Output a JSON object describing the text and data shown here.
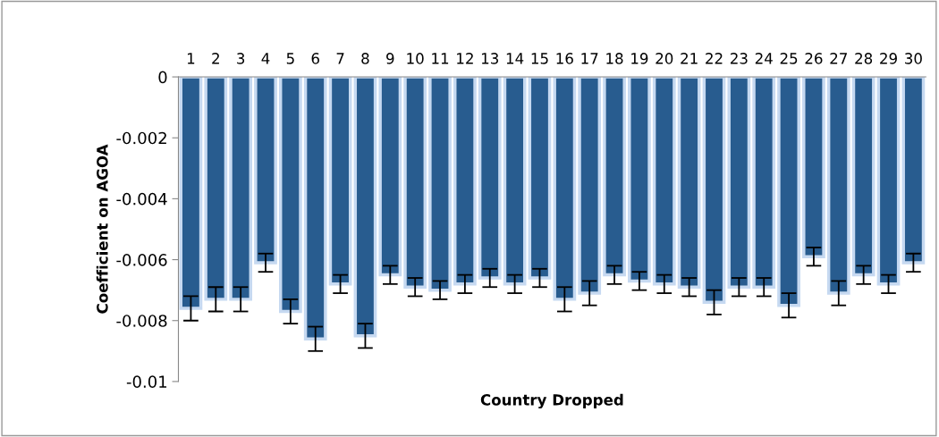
{
  "chart_data": {
    "type": "bar",
    "xlabel": "Country Dropped",
    "ylabel": "Coefficient on AGOA",
    "categories": [
      "1",
      "2",
      "3",
      "4",
      "5",
      "6",
      "7",
      "8",
      "9",
      "10",
      "11",
      "12",
      "13",
      "14",
      "15",
      "16",
      "17",
      "18",
      "19",
      "20",
      "21",
      "22",
      "23",
      "24",
      "25",
      "26",
      "27",
      "28",
      "29",
      "30"
    ],
    "values": [
      -0.0076,
      -0.0073,
      -0.0073,
      -0.0061,
      -0.0077,
      -0.0086,
      -0.0068,
      -0.0085,
      -0.0065,
      -0.0069,
      -0.007,
      -0.0068,
      -0.0066,
      -0.0068,
      -0.0066,
      -0.0073,
      -0.0071,
      -0.0065,
      -0.0067,
      -0.0068,
      -0.0069,
      -0.0074,
      -0.0069,
      -0.0069,
      -0.0075,
      -0.0059,
      -0.0071,
      -0.0065,
      -0.0068,
      -0.0061
    ],
    "errors": [
      0.0004,
      0.0004,
      0.0004,
      0.0003,
      0.0004,
      0.0004,
      0.0003,
      0.0004,
      0.0003,
      0.0003,
      0.0003,
      0.0003,
      0.0003,
      0.0003,
      0.0003,
      0.0004,
      0.0004,
      0.0003,
      0.0003,
      0.0003,
      0.0003,
      0.0004,
      0.0003,
      0.0003,
      0.0004,
      0.0003,
      0.0004,
      0.0003,
      0.0003,
      0.0003
    ],
    "color": "#285c8f",
    "ylim": [
      -0.01,
      0
    ],
    "yticks": [
      {
        "value": -0.01,
        "label": "-0.01"
      },
      {
        "value": -0.008,
        "label": "-0.008"
      },
      {
        "value": -0.006,
        "label": "-0.006"
      },
      {
        "value": -0.004,
        "label": "-0.004"
      },
      {
        "value": -0.002,
        "label": "-0.002"
      },
      {
        "value": 0,
        "label": "0"
      }
    ],
    "grid": false,
    "legend": false
  }
}
